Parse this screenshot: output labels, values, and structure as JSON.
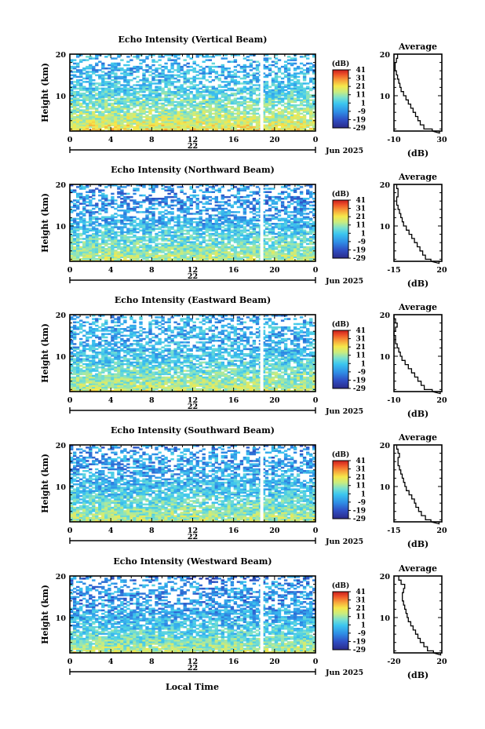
{
  "figure": {
    "xlabel": "Local Time",
    "date_label": "22",
    "month_label": "Jun 2025"
  },
  "chart_data": [
    {
      "type": "heatmap",
      "title": "Echo Intensity (Vertical Beam)",
      "ylabel": "Height (km)",
      "xlabel": "Local Time",
      "x_ticks": [
        "0",
        "4",
        "8",
        "12",
        "16",
        "20",
        "0"
      ],
      "x_range_hours": [
        0,
        24
      ],
      "y_ticks": [
        "20",
        "10"
      ],
      "y_range_km": [
        1.5,
        20
      ],
      "colorbar": {
        "label": "(dB)",
        "ticks": [
          "41",
          "31",
          "21",
          "11",
          "1",
          "-9",
          "-19",
          "-29"
        ],
        "range": [
          -29,
          41
        ]
      },
      "average": {
        "title": "Average",
        "xlabel": "(dB)",
        "x_ticks": [
          "-10",
          "30"
        ],
        "x_range": [
          -10,
          30
        ],
        "y_ticks": [
          "20",
          "10"
        ],
        "profile_db": [
          28,
          22,
          15,
          12,
          10,
          8,
          6,
          4,
          2,
          0,
          -2,
          -4,
          -5,
          -6,
          -7,
          -8,
          -9,
          -9,
          -8,
          -7
        ]
      }
    },
    {
      "type": "heatmap",
      "title": "Echo Intensity (Northward Beam)",
      "ylabel": "Height (km)",
      "xlabel": "Local Time",
      "x_ticks": [
        "0",
        "4",
        "8",
        "12",
        "16",
        "20",
        "0"
      ],
      "x_range_hours": [
        0,
        24
      ],
      "y_ticks": [
        "20",
        "10"
      ],
      "y_range_km": [
        1.5,
        20
      ],
      "colorbar": {
        "label": "(dB)",
        "ticks": [
          "41",
          "31",
          "21",
          "11",
          "1",
          "-9",
          "-19",
          "-29"
        ],
        "range": [
          -29,
          41
        ]
      },
      "average": {
        "title": "Average",
        "xlabel": "(dB)",
        "x_ticks": [
          "-15",
          "20"
        ],
        "x_range": [
          -15,
          20
        ],
        "y_ticks": [
          "20",
          "10"
        ],
        "profile_db": [
          18,
          12,
          8,
          6,
          4,
          2,
          0,
          -2,
          -4,
          -6,
          -8,
          -9,
          -10,
          -11,
          -12,
          -13,
          -13,
          -12,
          -12,
          -13
        ]
      }
    },
    {
      "type": "heatmap",
      "title": "Echo Intensity (Eastward Beam)",
      "ylabel": "Height (km)",
      "xlabel": "Local Time",
      "x_ticks": [
        "0",
        "4",
        "8",
        "12",
        "16",
        "20",
        "0"
      ],
      "x_range_hours": [
        0,
        24
      ],
      "y_ticks": [
        "20",
        "10"
      ],
      "y_range_km": [
        1.5,
        20
      ],
      "colorbar": {
        "label": "(dB)",
        "ticks": [
          "41",
          "31",
          "21",
          "11",
          "1",
          "-9",
          "-19",
          "-29"
        ],
        "range": [
          -29,
          41
        ]
      },
      "average": {
        "title": "Average",
        "xlabel": "(dB)",
        "x_ticks": [
          "-10",
          "20"
        ],
        "x_range": [
          -10,
          20
        ],
        "y_ticks": [
          "20",
          "10"
        ],
        "profile_db": [
          19,
          14,
          9,
          7,
          5,
          3,
          1,
          -1,
          -3,
          -5,
          -6,
          -7,
          -8,
          -9,
          -9,
          -10,
          -9,
          -8,
          -9,
          -10
        ]
      }
    },
    {
      "type": "heatmap",
      "title": "Echo Intensity (Southward Beam)",
      "ylabel": "Height (km)",
      "xlabel": "Local Time",
      "x_ticks": [
        "0",
        "4",
        "8",
        "12",
        "16",
        "20",
        "0"
      ],
      "x_range_hours": [
        0,
        24
      ],
      "y_ticks": [
        "20",
        "10"
      ],
      "y_range_km": [
        1.5,
        20
      ],
      "colorbar": {
        "label": "(dB)",
        "ticks": [
          "41",
          "31",
          "21",
          "11",
          "1",
          "-9",
          "-19",
          "-29"
        ],
        "range": [
          -29,
          41
        ]
      },
      "average": {
        "title": "Average",
        "xlabel": "(dB)",
        "x_ticks": [
          "-15",
          "20"
        ],
        "x_range": [
          -15,
          20
        ],
        "y_ticks": [
          "20",
          "10"
        ],
        "profile_db": [
          18,
          12,
          8,
          5,
          3,
          1,
          0,
          -2,
          -4,
          -6,
          -7,
          -8,
          -9,
          -10,
          -11,
          -12,
          -12,
          -11,
          -12,
          -13
        ]
      }
    },
    {
      "type": "heatmap",
      "title": "Echo Intensity (Westward Beam)",
      "ylabel": "Height (km)",
      "xlabel": "Local Time",
      "x_ticks": [
        "0",
        "4",
        "8",
        "12",
        "16",
        "20",
        "0"
      ],
      "x_range_hours": [
        0,
        24
      ],
      "y_ticks": [
        "20",
        "10"
      ],
      "y_range_km": [
        1.5,
        20
      ],
      "colorbar": {
        "label": "(dB)",
        "ticks": [
          "41",
          "31",
          "21",
          "11",
          "1",
          "-9",
          "-19",
          "-29"
        ],
        "range": [
          -29,
          41
        ]
      },
      "average": {
        "title": "Average",
        "xlabel": "(dB)",
        "x_ticks": [
          "-20",
          "20"
        ],
        "x_range": [
          -20,
          20
        ],
        "y_ticks": [
          "20",
          "10"
        ],
        "profile_db": [
          19,
          13,
          8,
          5,
          2,
          0,
          -2,
          -4,
          -6,
          -8,
          -9,
          -10,
          -11,
          -12,
          -13,
          -13,
          -12,
          -11,
          -14,
          -16
        ]
      }
    }
  ]
}
